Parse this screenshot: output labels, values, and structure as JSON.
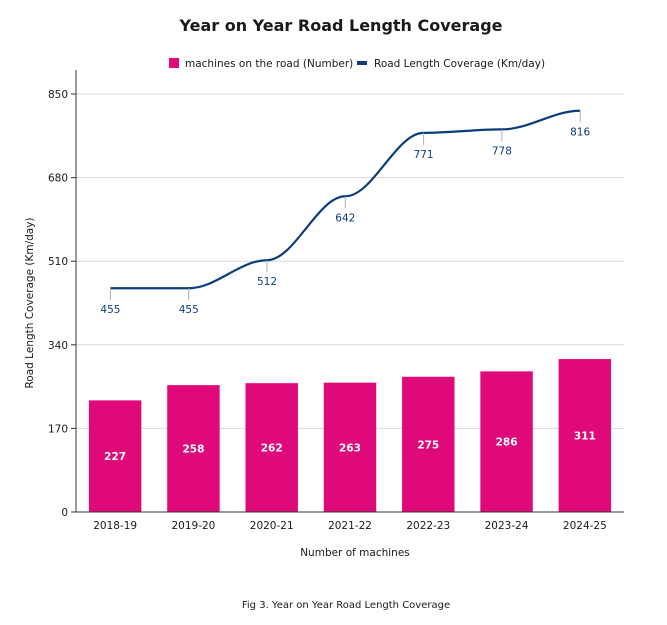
{
  "chart_data": {
    "type": "bar",
    "title": "Year on Year Road Length Coverage",
    "xlabel": "Number of machines",
    "ylabel": "Road Length Coverage (Km/day)",
    "categories": [
      "2018-19",
      "2019-20",
      "2020-21",
      "2021-22",
      "2022-23",
      "2023-24",
      "2024-25"
    ],
    "ylim": [
      0,
      850
    ],
    "yticks": [
      "0",
      "170",
      "340",
      "510",
      "680",
      "850"
    ],
    "grid": true,
    "legend_position": "top",
    "series": [
      {
        "name": "machines on the road (Number)",
        "type": "bar",
        "color": "#e0097a",
        "values": [
          227,
          258,
          262,
          263,
          275,
          286,
          311
        ],
        "labels": [
          "227",
          "258",
          "262",
          "263",
          "275",
          "286",
          "311"
        ]
      },
      {
        "name": "Road Length Coverage (Km/day)",
        "type": "line",
        "color": "#0b3d7a",
        "values": [
          455,
          455,
          512,
          642,
          771,
          778,
          816
        ],
        "labels": [
          "455",
          "455",
          "512",
          "642",
          "771",
          "778",
          "816"
        ]
      }
    ],
    "caption": "Fig 3. Year on Year Road Length Coverage"
  }
}
